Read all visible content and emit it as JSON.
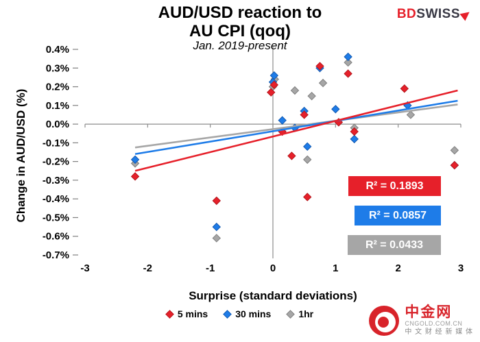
{
  "header": {
    "title_line1": "AUD/USD reaction to",
    "title_line2": "AU CPI (qoq)",
    "subtitle": "Jan. 2019-present"
  },
  "logo": {
    "part1": "BD",
    "part2": "SWISS"
  },
  "watermark": {
    "brand": "中金网",
    "domain": "CNGOLD.COM.CN",
    "tagline": "中 文 财 经 新 媒 体"
  },
  "chart_data": {
    "type": "scatter",
    "title": "AUD/USD reaction to AU CPI (qoq)",
    "subtitle": "Jan. 2019-present",
    "xlabel": "Surprise (standard deviations)",
    "ylabel": "Change in AUD/USD (%)",
    "xlim": [
      -3,
      3
    ],
    "ylim": [
      -0.7,
      0.4
    ],
    "grid": false,
    "legend_position": "bottom",
    "x_ticks": [
      {
        "v": -3,
        "label": "-3"
      },
      {
        "v": -2,
        "label": "-2"
      },
      {
        "v": -1,
        "label": "-1"
      },
      {
        "v": 0,
        "label": "0"
      },
      {
        "v": 1,
        "label": "1"
      },
      {
        "v": 2,
        "label": "2"
      },
      {
        "v": 3,
        "label": "3"
      }
    ],
    "y_ticks": [
      {
        "v": 0.4,
        "label": "0.4%"
      },
      {
        "v": 0.3,
        "label": "0.3%"
      },
      {
        "v": 0.2,
        "label": "0.2%"
      },
      {
        "v": 0.1,
        "label": "0.1%"
      },
      {
        "v": 0.0,
        "label": "0.0%"
      },
      {
        "v": -0.1,
        "label": "-0.1%"
      },
      {
        "v": -0.2,
        "label": "-0.2%"
      },
      {
        "v": -0.3,
        "label": "-0.3%"
      },
      {
        "v": -0.4,
        "label": "-0.4%"
      },
      {
        "v": -0.5,
        "label": "-0.5%"
      },
      {
        "v": -0.6,
        "label": "-0.6%"
      },
      {
        "v": -0.7,
        "label": "-0.7%"
      }
    ],
    "series": [
      {
        "name": "5 mins",
        "color": "#e6202a",
        "edge": "#b3151c",
        "r2": 0.1893,
        "r2_label": "R² = 0.1893",
        "points": [
          [
            -2.2,
            -0.28
          ],
          [
            -0.9,
            -0.41
          ],
          [
            -0.03,
            0.17
          ],
          [
            0.02,
            0.21
          ],
          [
            0.15,
            -0.04
          ],
          [
            0.3,
            -0.17
          ],
          [
            0.5,
            0.05
          ],
          [
            0.55,
            -0.39
          ],
          [
            0.75,
            0.31
          ],
          [
            1.05,
            0.01
          ],
          [
            1.2,
            0.27
          ],
          [
            1.3,
            -0.04
          ],
          [
            2.1,
            0.19
          ],
          [
            2.9,
            -0.22
          ]
        ],
        "trend": [
          -2.2,
          -0.25,
          2.95,
          0.18
        ]
      },
      {
        "name": "30 mins",
        "color": "#1e7ce8",
        "edge": "#1259b0",
        "r2": 0.0857,
        "r2_label": "R² = 0.0857",
        "points": [
          [
            -2.2,
            -0.19
          ],
          [
            -0.9,
            -0.55
          ],
          [
            0.0,
            0.225
          ],
          [
            0.02,
            0.26
          ],
          [
            0.15,
            0.02
          ],
          [
            0.35,
            -0.02
          ],
          [
            0.5,
            0.07
          ],
          [
            0.55,
            -0.12
          ],
          [
            0.75,
            0.3
          ],
          [
            1.0,
            0.08
          ],
          [
            1.2,
            0.36
          ],
          [
            1.3,
            -0.08
          ],
          [
            2.15,
            0.1
          ],
          [
            2.9,
            -0.22
          ]
        ],
        "trend": [
          -2.2,
          -0.16,
          2.95,
          0.125
        ]
      },
      {
        "name": "1hr",
        "color": "#a6a6a6",
        "edge": "#7f7f7f",
        "r2": 0.0433,
        "r2_label": "R² = 0.0433",
        "points": [
          [
            -2.2,
            -0.21
          ],
          [
            -0.9,
            -0.61
          ],
          [
            0.0,
            0.2
          ],
          [
            0.03,
            0.24
          ],
          [
            0.35,
            0.18
          ],
          [
            0.55,
            -0.19
          ],
          [
            0.62,
            0.15
          ],
          [
            0.8,
            0.22
          ],
          [
            1.2,
            0.33
          ],
          [
            1.3,
            -0.02
          ],
          [
            2.2,
            0.05
          ],
          [
            2.9,
            -0.14
          ]
        ],
        "trend": [
          -2.2,
          -0.125,
          2.95,
          0.105
        ]
      }
    ]
  }
}
